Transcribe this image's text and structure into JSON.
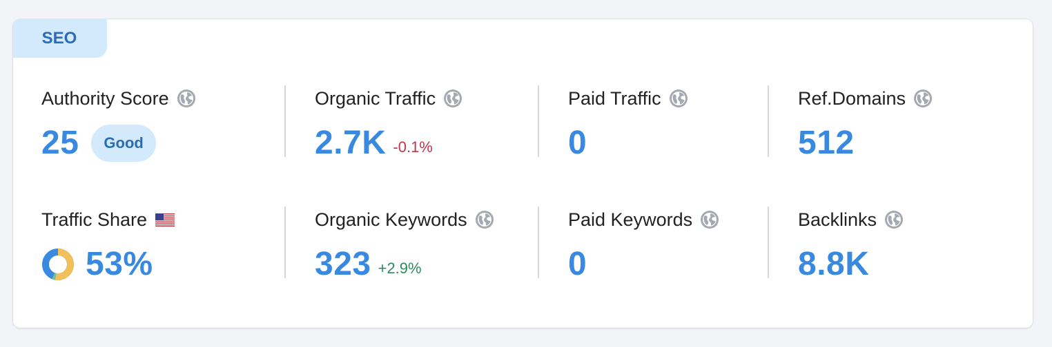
{
  "section": {
    "title": "SEO"
  },
  "metrics": {
    "authority_score": {
      "label": "Authority Score",
      "value": "25",
      "badge": "Good"
    },
    "organic_traffic": {
      "label": "Organic Traffic",
      "value": "2.7K",
      "change": "-0.1%"
    },
    "paid_traffic": {
      "label": "Paid Traffic",
      "value": "0"
    },
    "ref_domains": {
      "label": "Ref.Domains",
      "value": "512"
    },
    "traffic_share": {
      "label": "Traffic Share",
      "value": "53%",
      "share_fraction": 0.53,
      "flag_icon": "us-flag-icon"
    },
    "organic_keywords": {
      "label": "Organic Keywords",
      "value": "323",
      "change": "+2.9%"
    },
    "paid_keywords": {
      "label": "Paid Keywords",
      "value": "0"
    },
    "backlinks": {
      "label": "Backlinks",
      "value": "8.8K"
    }
  },
  "icons": {
    "info": "globe-icon"
  },
  "colors": {
    "value": "#3a89e0",
    "badge_bg": "#d3eafc",
    "badge_text": "#2b6cb4",
    "negative": "#c0364d",
    "positive": "#2f8a5a",
    "donut_main": "#f2c05a",
    "donut_rest": "#3a89e0"
  }
}
